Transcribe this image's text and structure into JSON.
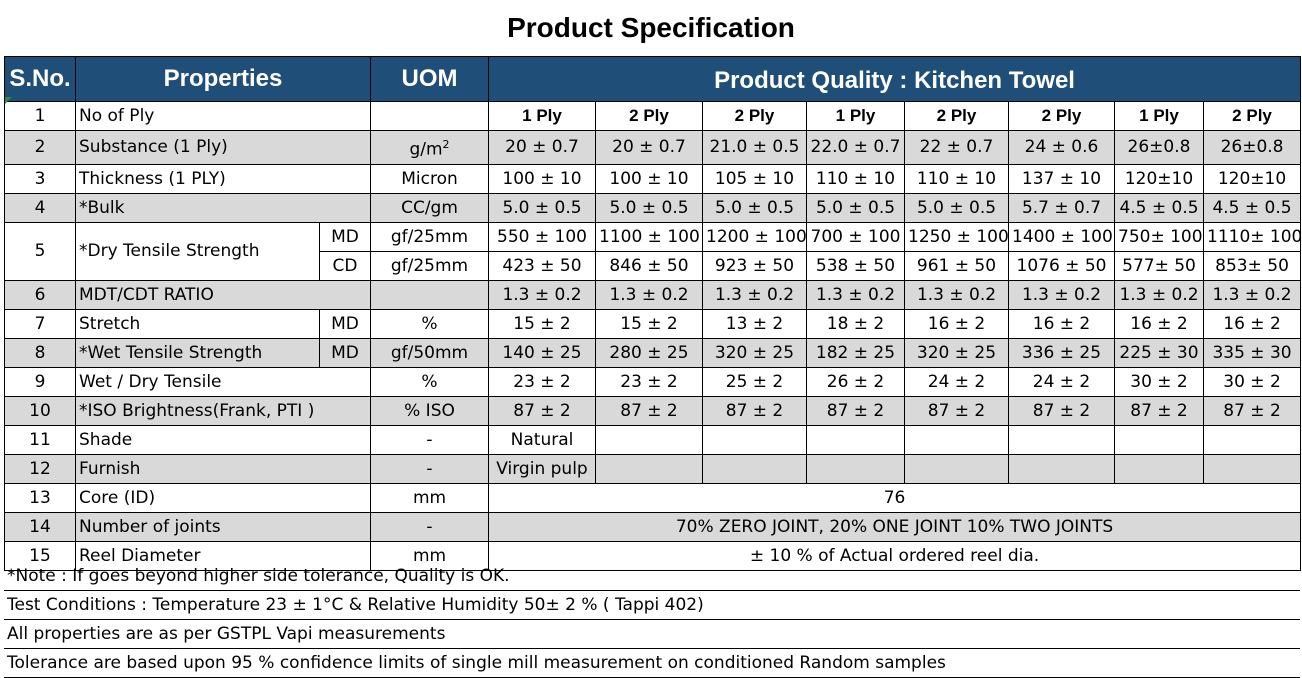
{
  "title": "Product Specification",
  "headers": {
    "sno": "S.No.",
    "properties": "Properties",
    "uom": "UOM",
    "quality": "Product Quality : Kitchen Towel"
  },
  "rows": [
    {
      "sno": "1",
      "property": "No of Ply",
      "sub": "",
      "uom": "",
      "values": [
        "1 Ply",
        "2 Ply",
        "2 Ply",
        "1 Ply",
        "2 Ply",
        "2 Ply",
        "1 Ply",
        "2 Ply"
      ]
    },
    {
      "sno": "2",
      "property": "Substance (1 Ply)",
      "sub": "",
      "uom": "g/m",
      "uom_sup": "2",
      "values": [
        "20 ± 0.7",
        "20 ± 0.7",
        "21.0 ± 0.5",
        "22.0 ± 0.7",
        "22 ± 0.7",
        "24 ±  0.6",
        "26±0.8",
        "26±0.8"
      ]
    },
    {
      "sno": "3",
      "property": "Thickness (1 PLY)",
      "sub": "",
      "uom": "Micron",
      "values": [
        "100 ± 10",
        "100 ± 10",
        "105 ± 10",
        "110 ± 10",
        "110 ± 10",
        "137 ± 10",
        "120±10",
        "120±10"
      ]
    },
    {
      "sno": "4",
      "property": "*Bulk",
      "sub": "",
      "uom": "CC/gm",
      "values": [
        "5.0 ± 0.5",
        "5.0 ± 0.5",
        "5.0 ± 0.5",
        "5.0 ± 0.5",
        "5.0 ± 0.5",
        "5.7 ± 0.7",
        "4.5 ± 0.5",
        "4.5 ± 0.5"
      ]
    },
    {
      "sno": "5",
      "property": "*Dry Tensile Strength",
      "sub": "MD",
      "uom": "gf/25mm",
      "values": [
        "550 ± 100",
        "1100 ± 100",
        "1200 ± 100",
        "700 ± 100",
        "1250 ± 100",
        "1400 ± 100",
        "750± 100",
        "1110± 100"
      ]
    },
    {
      "sno": "",
      "property": "",
      "sub": "CD",
      "uom": "gf/25mm",
      "values": [
        "423 ± 50",
        "846 ± 50",
        "923 ± 50",
        "538 ± 50",
        "961 ± 50",
        "1076 ± 50",
        "577± 50",
        "853± 50"
      ]
    },
    {
      "sno": "6",
      "property": "MDT/CDT RATIO",
      "sub": "",
      "uom": "",
      "values": [
        "1.3 ± 0.2",
        "1.3 ± 0.2",
        "1.3 ± 0.2",
        "1.3 ± 0.2",
        "1.3 ± 0.2",
        "1.3 ± 0.2",
        "1.3 ± 0.2",
        "1.3 ± 0.2"
      ]
    },
    {
      "sno": "7",
      "property": "Stretch",
      "sub": "MD",
      "uom": "%",
      "values": [
        "15 ± 2",
        "15 ± 2",
        "13 ± 2",
        "18 ± 2",
        "16 ± 2",
        "16 ± 2",
        "16 ± 2",
        "16 ± 2"
      ]
    },
    {
      "sno": "8",
      "property": "*Wet Tensile Strength",
      "sub": "MD",
      "uom": "gf/50mm",
      "values": [
        "140 ± 25",
        "280 ± 25",
        "320 ± 25",
        "182 ± 25",
        "320 ± 25",
        "336 ± 25",
        "225 ± 30",
        "335 ± 30"
      ]
    },
    {
      "sno": "9",
      "property": "Wet / Dry Tensile",
      "sub": "",
      "uom": "%",
      "values": [
        "23 ± 2",
        "23 ± 2",
        "25 ± 2",
        "26 ± 2",
        "24 ± 2",
        "24 ± 2",
        "30 ± 2",
        "30 ± 2"
      ]
    },
    {
      "sno": "10",
      "property": "*ISO Brightness(Frank, PTI )",
      "sub": "",
      "uom": "% ISO",
      "values": [
        "87 ± 2",
        "87 ± 2",
        "87 ± 2",
        "87 ± 2",
        "87 ± 2",
        "87 ± 2",
        "87 ± 2",
        "87 ± 2"
      ]
    },
    {
      "sno": "11",
      "property": "Shade",
      "sub": "",
      "uom": "-",
      "values": [
        "Natural",
        "",
        "",
        "",
        "",
        "",
        "",
        ""
      ]
    },
    {
      "sno": "12",
      "property": "Furnish",
      "sub": "",
      "uom": "-",
      "values": [
        "Virgin pulp",
        "",
        "",
        "",
        "",
        "",
        "",
        ""
      ]
    },
    {
      "sno": "13",
      "property": "Core (ID)",
      "sub": "",
      "uom": "mm",
      "merged": "76"
    },
    {
      "sno": "14",
      "property": "Number of joints",
      "sub": "",
      "uom": "-",
      "merged": "70% ZERO JOINT,  20% ONE JOINT  10% TWO JOINTS"
    },
    {
      "sno": "15",
      "property": "Reel Diameter",
      "sub": "",
      "uom": "mm",
      "merged": "± 10 % of Actual ordered reel dia."
    }
  ],
  "notes": [
    "*Note : If goes beyond higher side tolerance, Quality is OK.",
    "Test Conditions : Temperature 23 ± 1°C & Relative Humidity 50± 2 % ( Tappi 402)",
    "All properties are as per  GSTPL Vapi measurements",
    "Tolerance are based upon 95 % confidence limits of single mill measurement on conditioned Random samples"
  ]
}
